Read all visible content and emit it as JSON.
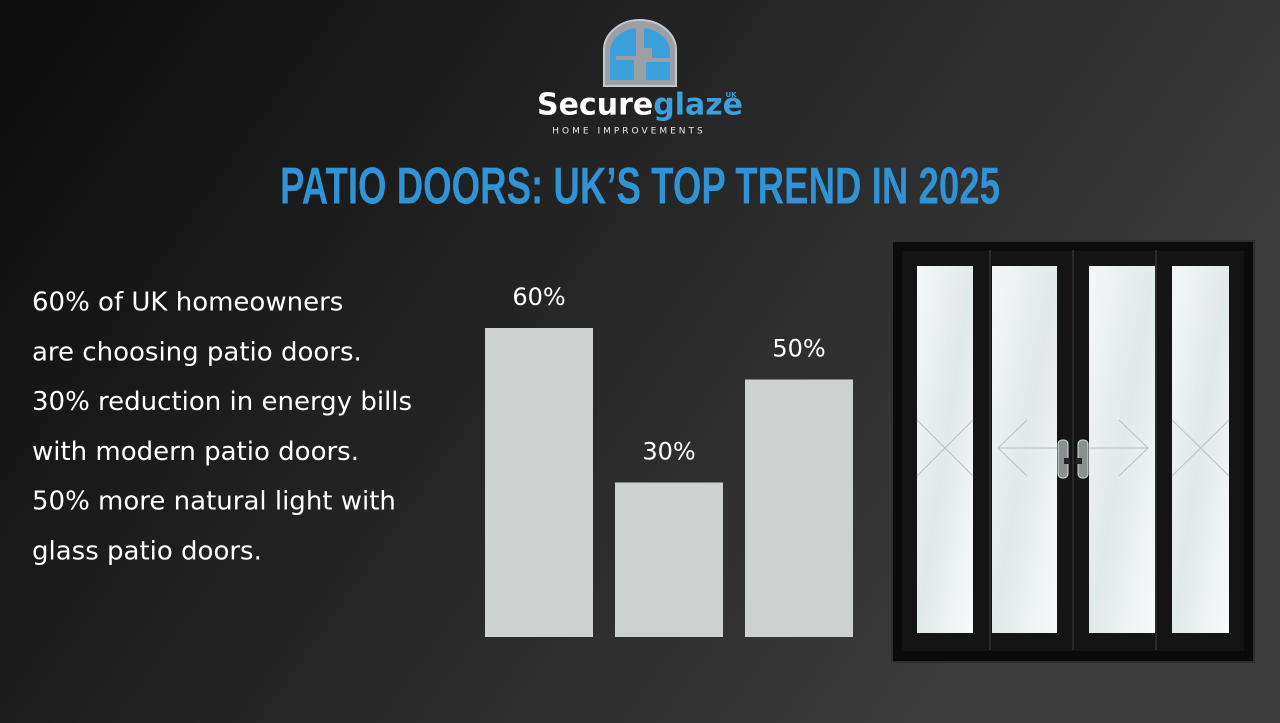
{
  "logo": {
    "brand_primary": "Secure",
    "brand_accent": "glaze",
    "badge": "UK",
    "tagline": "HOME IMPROVEMENTS"
  },
  "headline": "PATIO DOORS: UK’S TOP TREND IN 2025",
  "text_lines": [
    "60% of UK homeowners",
    "are choosing patio doors.",
    "30% reduction in energy bills",
    "with modern patio doors.",
    "50% more natural light with",
    "glass patio doors."
  ],
  "chart_data": {
    "type": "bar",
    "values": [
      60,
      30,
      50
    ],
    "value_labels": [
      "60%",
      "30%",
      "50%"
    ],
    "color": "#cdd2d0"
  }
}
